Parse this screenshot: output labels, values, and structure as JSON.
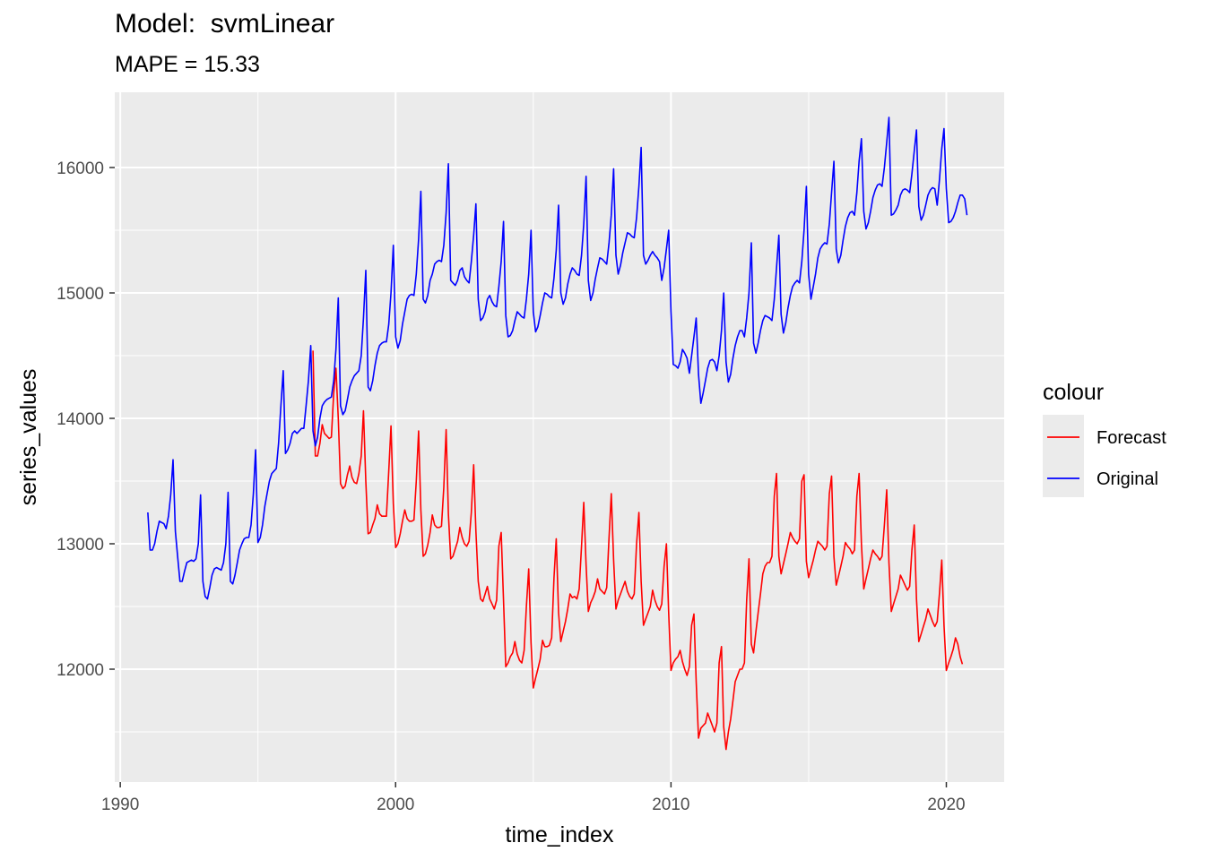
{
  "chart_data": {
    "type": "line",
    "title": "Model:  svmLinear",
    "subtitle": "MAPE = 15.33",
    "xlabel": "time_index",
    "ylabel": "series_values",
    "xlim": [
      1989.8,
      2022.1
    ],
    "ylim": [
      11100,
      16600
    ],
    "x_ticks": [
      1990,
      2000,
      2010,
      2020
    ],
    "x_minor_ticks": [
      1995,
      2005,
      2015
    ],
    "y_ticks": [
      12000,
      13000,
      14000,
      15000,
      16000
    ],
    "y_minor_ticks": [
      11500,
      12500,
      13500,
      14500,
      15500
    ],
    "grid": true,
    "legend": {
      "title": "colour",
      "position": "right"
    },
    "series": [
      {
        "name": "Forecast",
        "color": "#ff0000",
        "start": 1997.0,
        "step": 0.0833333,
        "values": [
          14540,
          13700,
          13700,
          13800,
          13950,
          13880,
          13860,
          13840,
          13850,
          14200,
          14400,
          14000,
          13480,
          13440,
          13460,
          13550,
          13620,
          13530,
          13490,
          13480,
          13560,
          13700,
          14060,
          13500,
          13080,
          13090,
          13150,
          13200,
          13310,
          13240,
          13220,
          13220,
          13220,
          13580,
          13940,
          13320,
          12970,
          13000,
          13080,
          13180,
          13270,
          13200,
          13180,
          13180,
          13190,
          13500,
          13900,
          13270,
          12900,
          12920,
          12990,
          13090,
          13230,
          13150,
          13130,
          13130,
          13140,
          13450,
          13910,
          13240,
          12880,
          12900,
          12960,
          13020,
          13130,
          13050,
          13000,
          12980,
          13020,
          13250,
          13630,
          13100,
          12700,
          12560,
          12540,
          12600,
          12660,
          12560,
          12520,
          12480,
          12550,
          12980,
          13090,
          12550,
          12020,
          12050,
          12100,
          12130,
          12220,
          12120,
          12070,
          12050,
          12150,
          12500,
          12800,
          12210,
          11850,
          11930,
          12000,
          12080,
          12230,
          12180,
          12180,
          12190,
          12250,
          12730,
          13040,
          12450,
          12220,
          12300,
          12380,
          12480,
          12600,
          12570,
          12580,
          12560,
          12640,
          12980,
          13330,
          12830,
          12460,
          12530,
          12570,
          12620,
          12720,
          12640,
          12620,
          12600,
          12650,
          13050,
          13400,
          12870,
          12480,
          12550,
          12600,
          12650,
          12700,
          12620,
          12580,
          12560,
          12600,
          13000,
          13250,
          12700,
          12350,
          12400,
          12450,
          12500,
          12630,
          12550,
          12500,
          12470,
          12520,
          12820,
          13000,
          12450,
          11990,
          12050,
          12080,
          12100,
          12150,
          12060,
          12000,
          11950,
          12020,
          12350,
          12440,
          11900,
          11450,
          11530,
          11550,
          11570,
          11650,
          11600,
          11550,
          11500,
          11570,
          12050,
          12180,
          11540,
          11360,
          11500,
          11600,
          11750,
          11900,
          11950,
          12000,
          12000,
          12050,
          12550,
          12880,
          12200,
          12130,
          12300,
          12450,
          12600,
          12760,
          12820,
          12850,
          12850,
          12900,
          13380,
          13560,
          12900,
          12760,
          12840,
          12920,
          13000,
          13090,
          13050,
          13020,
          13000,
          13040,
          13500,
          13550,
          12860,
          12730,
          12800,
          12870,
          12950,
          13020,
          13000,
          12980,
          12950,
          12980,
          13400,
          13540,
          12900,
          12670,
          12740,
          12820,
          12900,
          13010,
          12980,
          12960,
          12920,
          12950,
          13380,
          13560,
          13000,
          12640,
          12720,
          12800,
          12880,
          12950,
          12920,
          12900,
          12870,
          12900,
          13150,
          13430,
          12850,
          12460,
          12520,
          12580,
          12640,
          12750,
          12710,
          12670,
          12630,
          12660,
          12950,
          13150,
          12560,
          12220,
          12280,
          12340,
          12400,
          12480,
          12430,
          12380,
          12340,
          12380,
          12600,
          12870,
          12350,
          11990,
          12050,
          12100,
          12160,
          12250,
          12200,
          12100,
          12040
        ]
      },
      {
        "name": "Original",
        "color": "#0000ff",
        "start": 1991.0,
        "step": 0.0833333,
        "values": [
          13250,
          12950,
          12950,
          13000,
          13100,
          13180,
          13170,
          13160,
          13120,
          13220,
          13390,
          13670,
          13100,
          12900,
          12700,
          12700,
          12780,
          12850,
          12860,
          12870,
          12860,
          12880,
          13000,
          13390,
          12700,
          12580,
          12560,
          12650,
          12750,
          12800,
          12810,
          12800,
          12790,
          12850,
          13000,
          13410,
          12700,
          12680,
          12750,
          12850,
          12950,
          13000,
          13040,
          13050,
          13050,
          13150,
          13400,
          13750,
          13010,
          13050,
          13150,
          13300,
          13400,
          13500,
          13560,
          13580,
          13600,
          13800,
          14100,
          14380,
          13720,
          13750,
          13800,
          13880,
          13900,
          13880,
          13900,
          13920,
          13920,
          14100,
          14300,
          14580,
          13900,
          13780,
          13850,
          14000,
          14100,
          14130,
          14150,
          14160,
          14170,
          14300,
          14550,
          14960,
          14100,
          14030,
          14060,
          14150,
          14250,
          14300,
          14340,
          14360,
          14380,
          14500,
          14800,
          15180,
          14250,
          14220,
          14300,
          14420,
          14520,
          14580,
          14600,
          14610,
          14610,
          14750,
          15000,
          15380,
          14650,
          14560,
          14620,
          14750,
          14850,
          14950,
          14980,
          14990,
          14980,
          15150,
          15430,
          15810,
          14950,
          14920,
          14980,
          15100,
          15150,
          15230,
          15250,
          15260,
          15250,
          15380,
          15640,
          16030,
          15100,
          15080,
          15060,
          15100,
          15180,
          15200,
          15130,
          15100,
          15080,
          15250,
          15460,
          15710,
          14950,
          14780,
          14800,
          14850,
          14950,
          14980,
          14930,
          14900,
          14890,
          15050,
          15250,
          15570,
          14820,
          14650,
          14660,
          14700,
          14780,
          14850,
          14830,
          14810,
          14800,
          14950,
          15150,
          15500,
          14850,
          14690,
          14730,
          14820,
          14920,
          15000,
          14990,
          14970,
          14960,
          15120,
          15340,
          15700,
          15000,
          14910,
          14960,
          15070,
          15150,
          15200,
          15180,
          15150,
          15140,
          15300,
          15550,
          15930,
          15100,
          14940,
          15000,
          15110,
          15200,
          15280,
          15270,
          15250,
          15230,
          15400,
          15620,
          15990,
          15300,
          15150,
          15220,
          15320,
          15400,
          15480,
          15470,
          15450,
          15440,
          15600,
          15850,
          16160,
          15300,
          15230,
          15260,
          15300,
          15330,
          15300,
          15280,
          15250,
          15100,
          15200,
          15350,
          15500,
          14850,
          14430,
          14420,
          14400,
          14450,
          14550,
          14520,
          14480,
          14360,
          14500,
          14650,
          14800,
          14350,
          14120,
          14200,
          14300,
          14400,
          14460,
          14470,
          14450,
          14380,
          14500,
          14700,
          15000,
          14450,
          14290,
          14350,
          14480,
          14580,
          14650,
          14700,
          14700,
          14650,
          14800,
          15000,
          15400,
          14600,
          14520,
          14600,
          14700,
          14780,
          14820,
          14810,
          14800,
          14780,
          14950,
          15200,
          15460,
          14830,
          14680,
          14760,
          14880,
          14980,
          15050,
          15080,
          15100,
          15080,
          15250,
          15500,
          15850,
          15150,
          14950,
          15050,
          15150,
          15280,
          15350,
          15380,
          15400,
          15390,
          15550,
          15800,
          16050,
          15350,
          15240,
          15300,
          15420,
          15530,
          15600,
          15640,
          15650,
          15620,
          15800,
          16050,
          16230,
          15650,
          15510,
          15560,
          15650,
          15760,
          15820,
          15860,
          15870,
          15850,
          16000,
          16200,
          16400,
          15620,
          15630,
          15660,
          15700,
          15780,
          15820,
          15830,
          15820,
          15800,
          15950,
          16130,
          16300,
          15690,
          15580,
          15620,
          15700,
          15780,
          15820,
          15840,
          15830,
          15700,
          15900,
          16150,
          16310,
          15830,
          15560,
          15570,
          15600,
          15650,
          15720,
          15780,
          15780,
          15750,
          15620
        ]
      }
    ]
  }
}
